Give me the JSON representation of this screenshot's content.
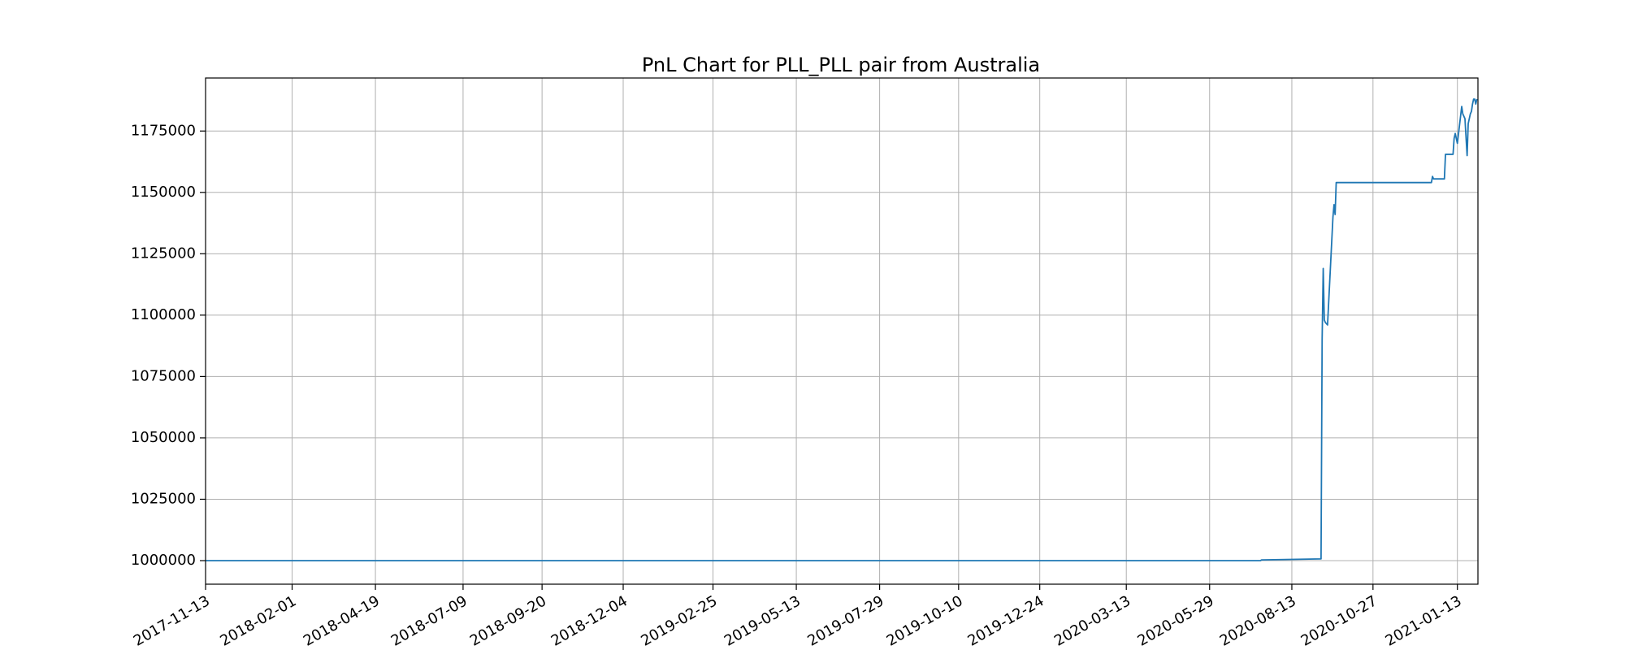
{
  "chart_data": {
    "type": "line",
    "title": "PnL Chart for PLL_PLL pair from Australia",
    "xlabel": "",
    "ylabel": "",
    "x_axis": "date",
    "xlim": [
      "2017-11-13",
      "2021-02-01"
    ],
    "ylim": [
      990400,
      1196600
    ],
    "grid": true,
    "legend": "none",
    "color": "#1f77b4",
    "x_ticks": [
      "2017-11-13",
      "2018-02-01",
      "2018-04-19",
      "2018-07-09",
      "2018-09-20",
      "2018-12-04",
      "2019-02-25",
      "2019-05-13",
      "2019-07-29",
      "2019-10-10",
      "2019-12-24",
      "2020-03-13",
      "2020-05-29",
      "2020-08-13",
      "2020-10-27",
      "2021-01-13"
    ],
    "y_ticks": [
      1000000,
      1025000,
      1050000,
      1075000,
      1100000,
      1125000,
      1150000,
      1175000
    ],
    "y_tick_labels": [
      "1000000",
      "1025000",
      "1050000",
      "1075000",
      "1100000",
      "1125000",
      "1150000",
      "1175000"
    ],
    "series": [
      {
        "x": [
          "2017-11-13",
          "2020-07-15",
          "2020-07-16",
          "2020-09-09",
          "2020-09-10",
          "2020-09-11",
          "2020-09-12",
          "2020-09-13",
          "2020-09-15",
          "2020-09-20",
          "2020-09-21",
          "2020-09-22",
          "2020-09-23",
          "2020-09-24",
          "2020-12-20",
          "2020-12-21",
          "2020-12-22",
          "2020-12-30",
          "2021-01-01",
          "2021-01-02",
          "2021-01-08",
          "2021-01-09",
          "2021-01-10",
          "2021-01-11",
          "2021-01-13",
          "2021-01-17",
          "2021-01-18",
          "2021-01-19",
          "2021-01-20",
          "2021-01-22",
          "2021-01-23",
          "2021-01-25",
          "2021-01-26",
          "2021-01-27",
          "2021-01-28",
          "2021-01-29",
          "2021-01-30",
          "2021-01-31"
        ],
        "y": [
          1000000,
          1000000,
          1000300,
          1000700,
          1090000,
          1119000,
          1098000,
          1097000,
          1096000,
          1140000,
          1145000,
          1141000,
          1154000,
          1154000,
          1154000,
          1156500,
          1155500,
          1155500,
          1155500,
          1165500,
          1165500,
          1165500,
          1172000,
          1174000,
          1170000,
          1185000,
          1182000,
          1181000,
          1180000,
          1165000,
          1178000,
          1182000,
          1183000,
          1186000,
          1188000,
          1188000,
          1186000,
          1188000
        ]
      }
    ]
  }
}
